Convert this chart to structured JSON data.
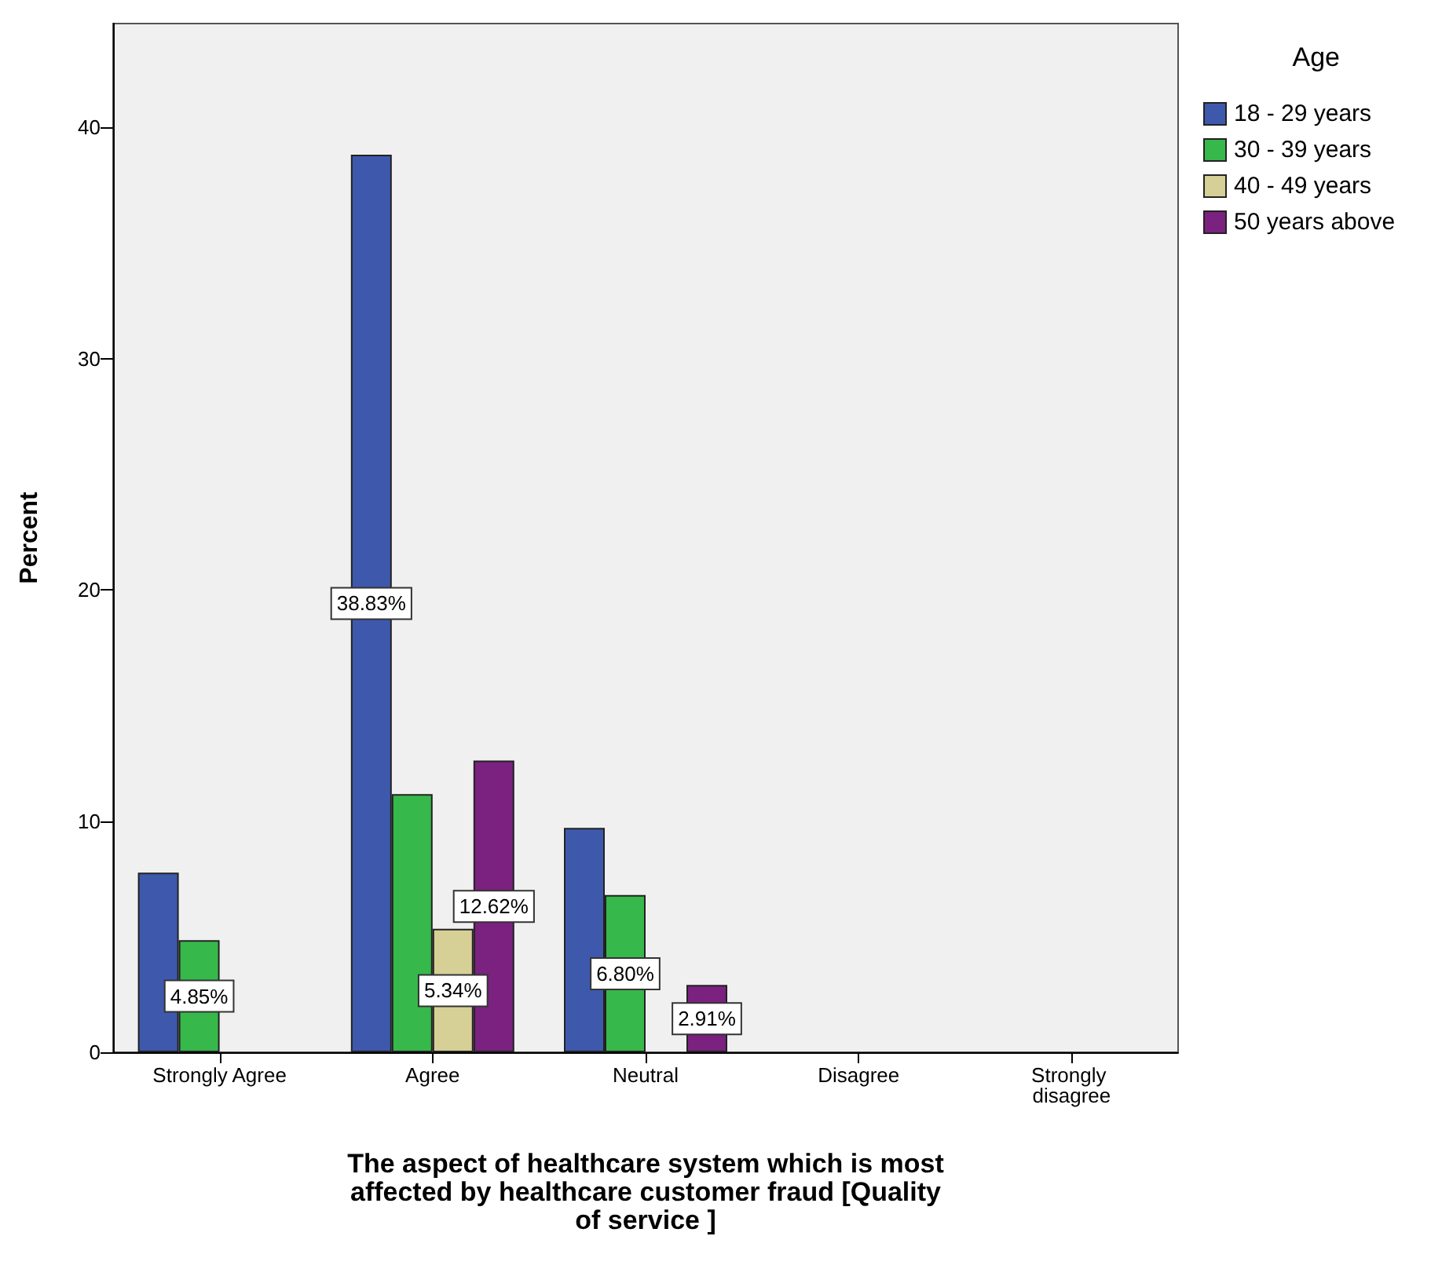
{
  "chart_data": {
    "type": "bar",
    "xlabel": "The aspect of healthcare system which is most affected by healthcare customer fraud [Quality of service ]",
    "ylabel": "Percent",
    "legend_title": "Age",
    "categories": [
      "Strongly Agree",
      "Agree",
      "Neutral",
      "Disagree",
      "Strongly disagree"
    ],
    "series": [
      {
        "name": "18 - 29 years",
        "color": "#3e58ac",
        "values": [
          7.77,
          38.83,
          9.71,
          null,
          null
        ],
        "value_labels": [
          null,
          "38.83%",
          null,
          null,
          null
        ]
      },
      {
        "name": "30 - 39 years",
        "color": "#37b84b",
        "values": [
          4.85,
          11.17,
          6.8,
          null,
          null
        ],
        "value_labels": [
          "4.85%",
          null,
          "6.80%",
          null,
          null
        ]
      },
      {
        "name": "40 - 49 years",
        "color": "#d6cf96",
        "values": [
          null,
          5.34,
          null,
          null,
          null
        ],
        "value_labels": [
          null,
          "5.34%",
          null,
          null,
          null
        ]
      },
      {
        "name": "50 years above",
        "color": "#7b217f",
        "values": [
          null,
          12.62,
          2.91,
          null,
          null
        ],
        "value_labels": [
          null,
          "12.62%",
          "2.91%",
          null,
          null
        ]
      }
    ],
    "ylim": [
      0,
      44.5
    ],
    "yticks": [
      0,
      10,
      20,
      30,
      40
    ],
    "grid": false,
    "legend": "top right"
  }
}
